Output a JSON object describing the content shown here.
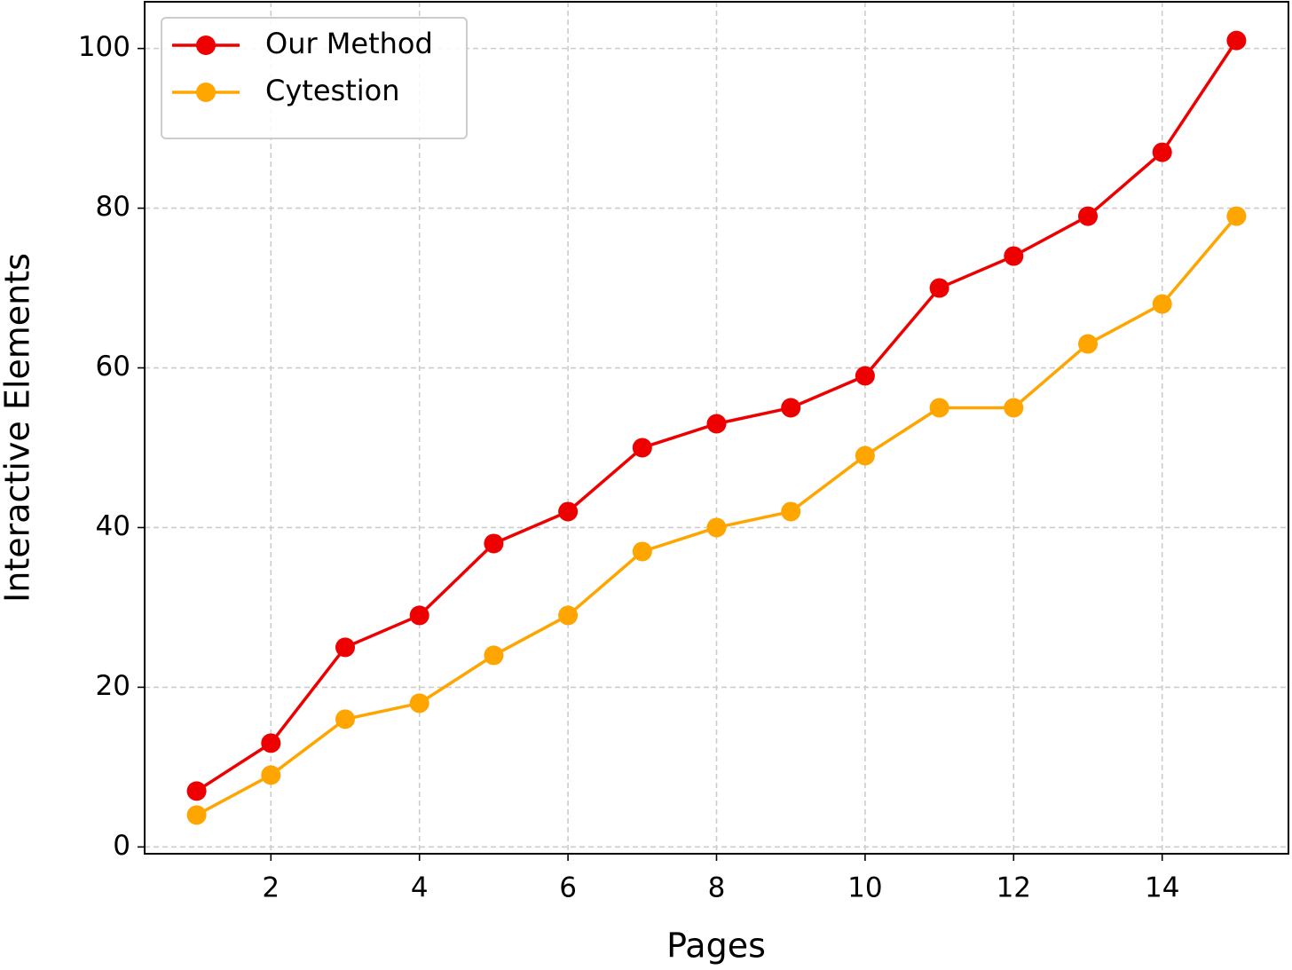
{
  "chart_data": {
    "type": "line",
    "x_label": "Pages",
    "y_label": "Interactive Elements",
    "x": [
      1,
      2,
      3,
      4,
      5,
      6,
      7,
      8,
      9,
      10,
      11,
      12,
      13,
      14,
      15
    ],
    "series": [
      {
        "name": "Our Method",
        "color": "#ee0000",
        "values": [
          7,
          13,
          25,
          29,
          38,
          42,
          50,
          53,
          55,
          59,
          70,
          74,
          79,
          87,
          101
        ]
      },
      {
        "name": "Cytestion",
        "color": "#ffa500",
        "values": [
          4,
          9,
          16,
          18,
          24,
          29,
          37,
          40,
          42,
          49,
          55,
          55,
          63,
          68,
          79
        ]
      }
    ],
    "xlim": [
      0.3,
      15.7
    ],
    "xticks": [
      2,
      4,
      6,
      8,
      10,
      12,
      14
    ],
    "ylim": [
      -0.85,
      105.85
    ],
    "yticks": [
      0,
      20,
      40,
      60,
      80,
      100
    ],
    "grid": true,
    "legend": "upper-left"
  }
}
